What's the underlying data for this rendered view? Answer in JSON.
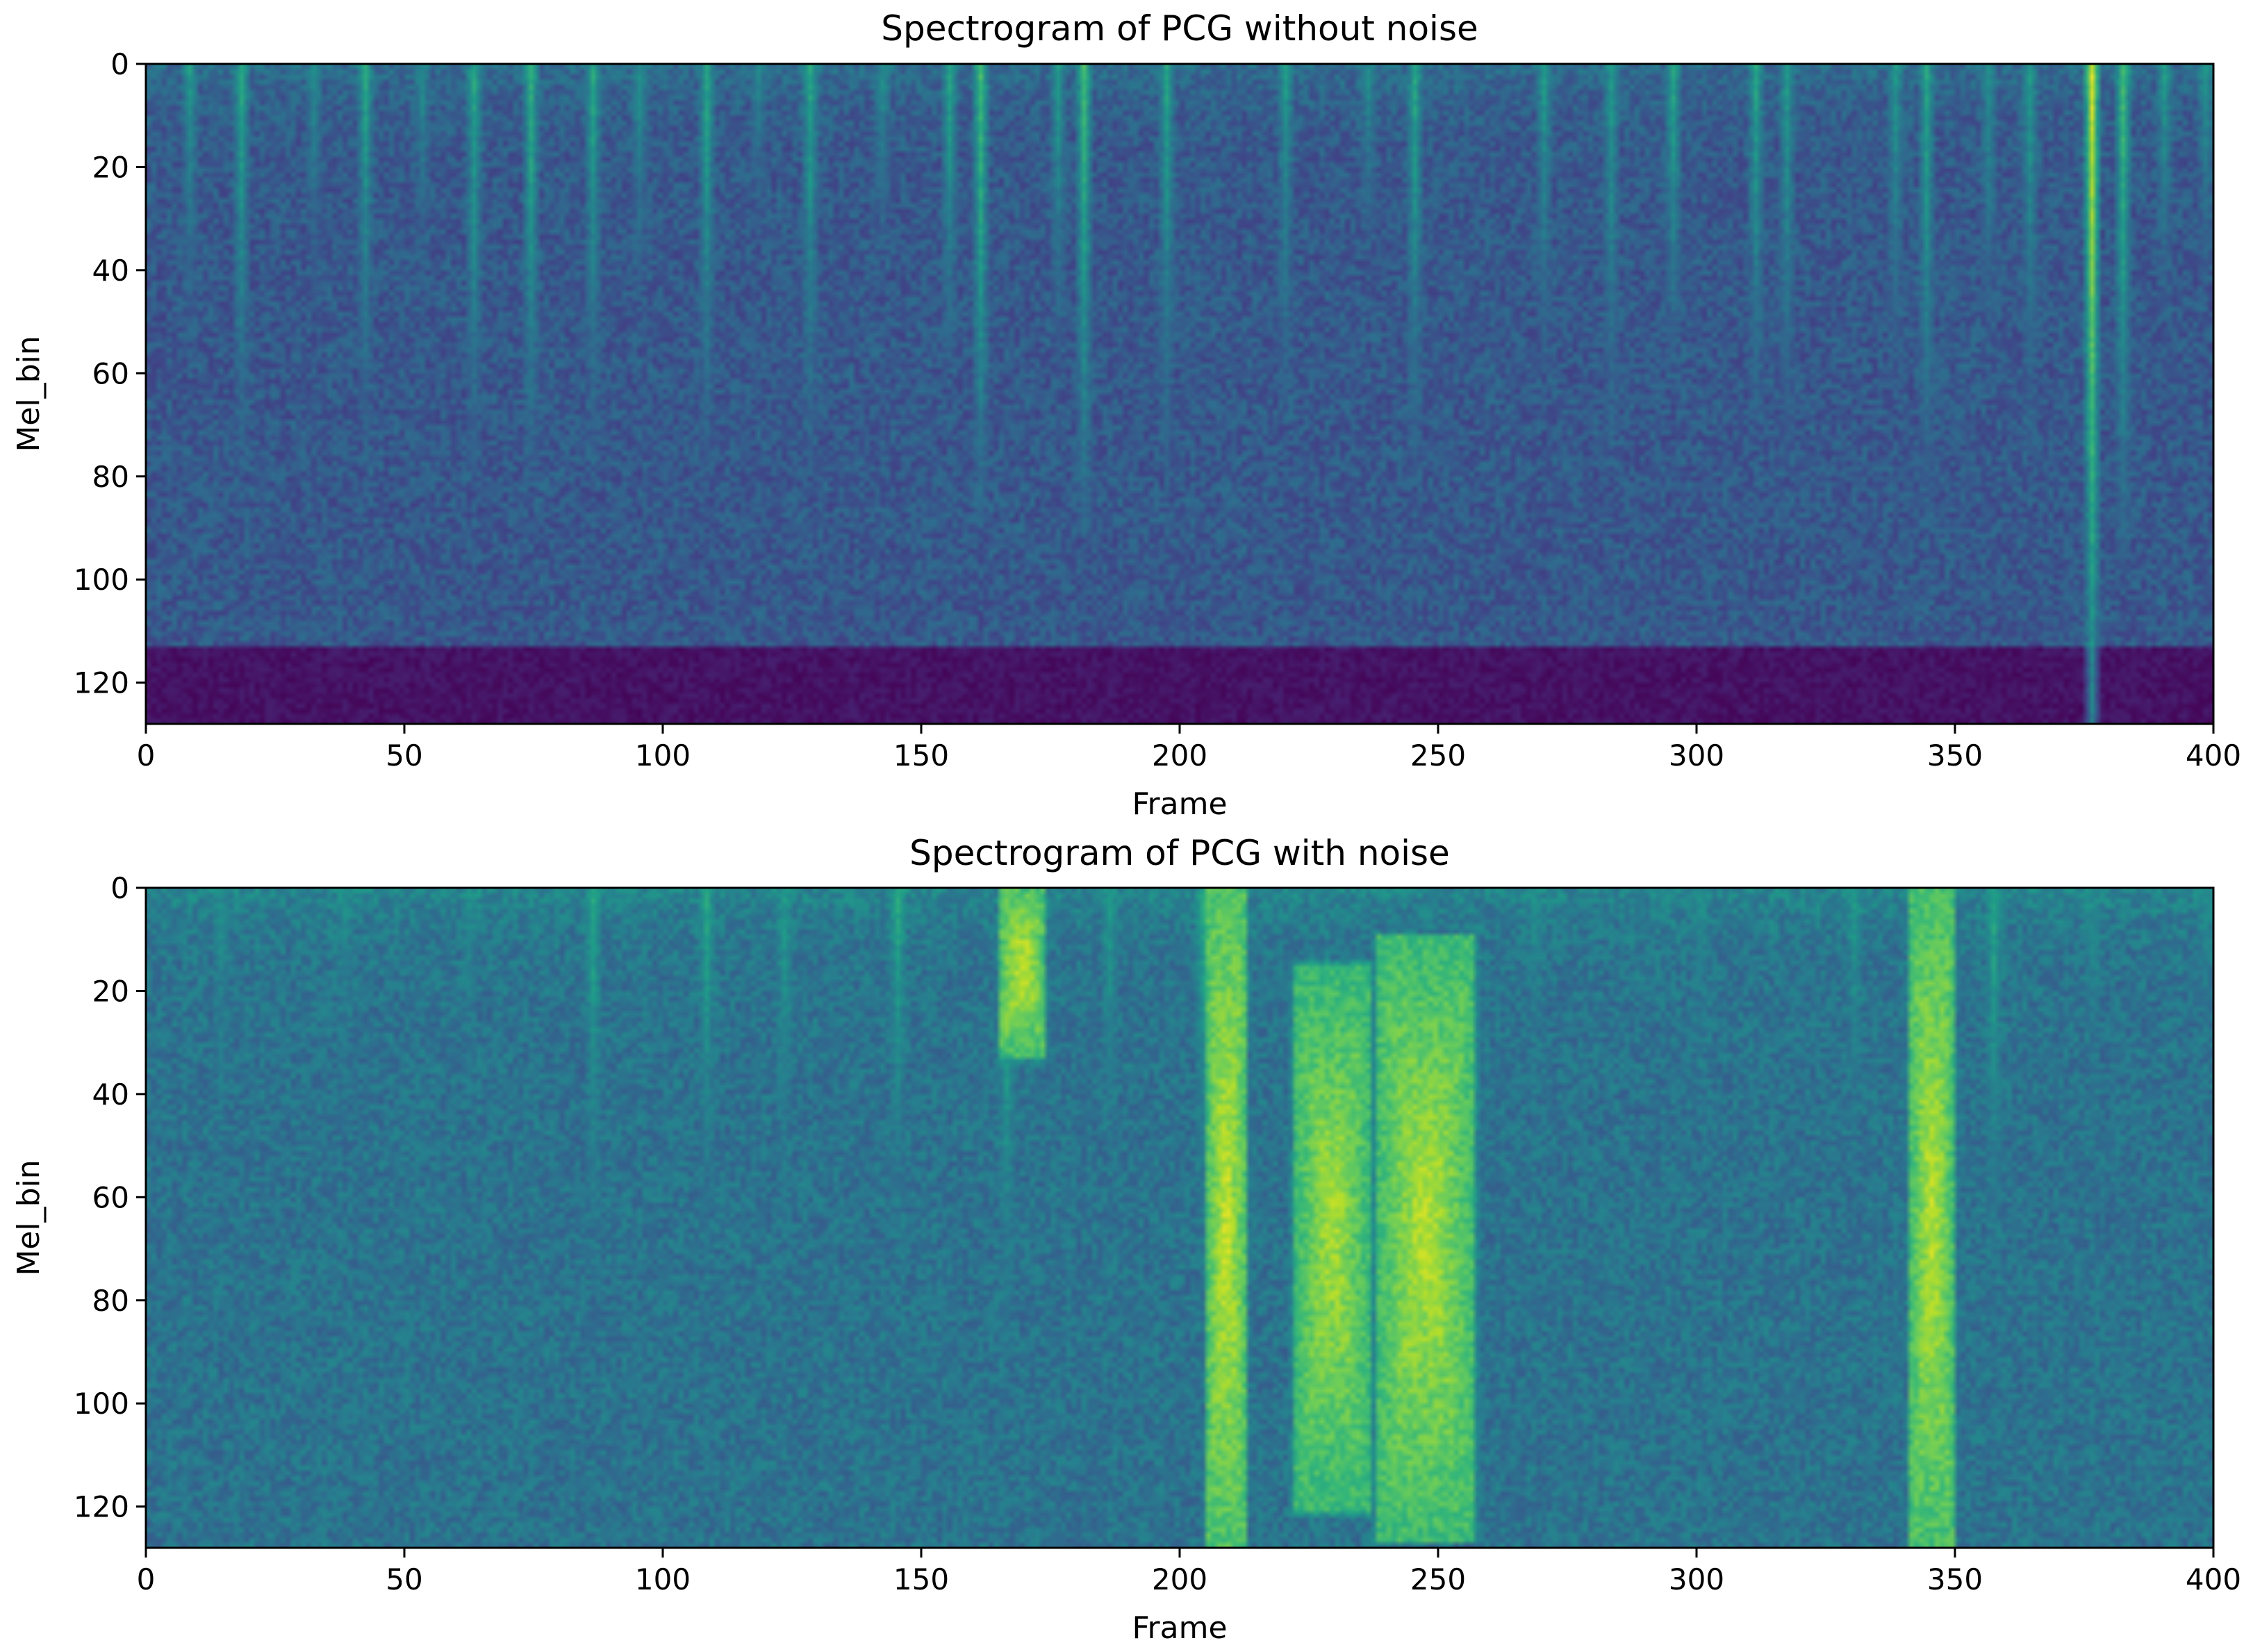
{
  "figure": {
    "colormap": "viridis",
    "colormap_stops": [
      "#440154",
      "#482878",
      "#3e4989",
      "#31688e",
      "#26828e",
      "#1f9e89",
      "#35b779",
      "#6ece58",
      "#b5de2b",
      "#fde725"
    ]
  },
  "chart_data": [
    {
      "type": "heatmap",
      "title": "Spectrogram of PCG without noise",
      "xlabel": "Frame",
      "ylabel": "Mel_bin",
      "xlim": [
        0,
        400
      ],
      "ylim": [
        128,
        0
      ],
      "n_frames": 400,
      "n_mel_bins": 128,
      "x_ticks": [
        "0",
        "50",
        "100",
        "150",
        "200",
        "250",
        "300",
        "350",
        "400"
      ],
      "y_ticks": [
        "0",
        "20",
        "40",
        "60",
        "80",
        "100",
        "120"
      ],
      "grid": false,
      "baseline_level": 0.28,
      "bottom_band": {
        "from_bin": 113,
        "level": 0.05
      },
      "transients": [
        {
          "frame": 8,
          "depth": 50,
          "intensity": 0.55
        },
        {
          "frame": 18,
          "depth": 78,
          "intensity": 0.6
        },
        {
          "frame": 32,
          "depth": 45,
          "intensity": 0.5
        },
        {
          "frame": 42,
          "depth": 72,
          "intensity": 0.6
        },
        {
          "frame": 53,
          "depth": 40,
          "intensity": 0.5
        },
        {
          "frame": 63,
          "depth": 80,
          "intensity": 0.6
        },
        {
          "frame": 74,
          "depth": 80,
          "intensity": 0.65
        },
        {
          "frame": 86,
          "depth": 75,
          "intensity": 0.6
        },
        {
          "frame": 95,
          "depth": 50,
          "intensity": 0.5
        },
        {
          "frame": 108,
          "depth": 80,
          "intensity": 0.6
        },
        {
          "frame": 118,
          "depth": 40,
          "intensity": 0.45
        },
        {
          "frame": 128,
          "depth": 80,
          "intensity": 0.6
        },
        {
          "frame": 142,
          "depth": 40,
          "intensity": 0.5
        },
        {
          "frame": 155,
          "depth": 60,
          "intensity": 0.6
        },
        {
          "frame": 161,
          "depth": 90,
          "intensity": 0.7
        },
        {
          "frame": 176,
          "depth": 60,
          "intensity": 0.55
        },
        {
          "frame": 181,
          "depth": 92,
          "intensity": 0.7
        },
        {
          "frame": 197,
          "depth": 80,
          "intensity": 0.6
        },
        {
          "frame": 220,
          "depth": 70,
          "intensity": 0.55
        },
        {
          "frame": 236,
          "depth": 40,
          "intensity": 0.5
        },
        {
          "frame": 245,
          "depth": 80,
          "intensity": 0.6
        },
        {
          "frame": 270,
          "depth": 60,
          "intensity": 0.55
        },
        {
          "frame": 283,
          "depth": 80,
          "intensity": 0.55
        },
        {
          "frame": 295,
          "depth": 60,
          "intensity": 0.6
        },
        {
          "frame": 311,
          "depth": 70,
          "intensity": 0.6
        },
        {
          "frame": 317,
          "depth": 80,
          "intensity": 0.55
        },
        {
          "frame": 338,
          "depth": 60,
          "intensity": 0.55
        },
        {
          "frame": 344,
          "depth": 90,
          "intensity": 0.6
        },
        {
          "frame": 356,
          "depth": 60,
          "intensity": 0.5
        },
        {
          "frame": 364,
          "depth": 75,
          "intensity": 0.55
        },
        {
          "frame": 376,
          "depth": 128,
          "intensity": 0.95
        },
        {
          "frame": 382,
          "depth": 95,
          "intensity": 0.7
        },
        {
          "frame": 390,
          "depth": 50,
          "intensity": 0.55
        },
        {
          "frame": 398,
          "depth": 40,
          "intensity": 0.55
        }
      ],
      "bursts": []
    },
    {
      "type": "heatmap",
      "title": "Spectrogram of PCG with noise",
      "xlabel": "Frame",
      "ylabel": "Mel_bin",
      "xlim": [
        0,
        400
      ],
      "ylim": [
        128,
        0
      ],
      "n_frames": 400,
      "n_mel_bins": 128,
      "x_ticks": [
        "0",
        "50",
        "100",
        "150",
        "200",
        "250",
        "300",
        "350",
        "400"
      ],
      "y_ticks": [
        "0",
        "20",
        "40",
        "60",
        "80",
        "100",
        "120"
      ],
      "grid": false,
      "baseline_level": 0.38,
      "bottom_band": null,
      "transients": [
        {
          "frame": 14,
          "depth": 70,
          "intensity": 0.5
        },
        {
          "frame": 38,
          "depth": 60,
          "intensity": 0.5
        },
        {
          "frame": 62,
          "depth": 65,
          "intensity": 0.5
        },
        {
          "frame": 86,
          "depth": 90,
          "intensity": 0.6
        },
        {
          "frame": 108,
          "depth": 80,
          "intensity": 0.6
        },
        {
          "frame": 123,
          "depth": 80,
          "intensity": 0.55
        },
        {
          "frame": 145,
          "depth": 85,
          "intensity": 0.6
        },
        {
          "frame": 166,
          "depth": 100,
          "intensity": 0.65
        },
        {
          "frame": 186,
          "depth": 70,
          "intensity": 0.55
        },
        {
          "frame": 204,
          "depth": 80,
          "intensity": 0.6
        },
        {
          "frame": 268,
          "depth": 60,
          "intensity": 0.5
        },
        {
          "frame": 300,
          "depth": 50,
          "intensity": 0.5
        },
        {
          "frame": 330,
          "depth": 70,
          "intensity": 0.55
        },
        {
          "frame": 357,
          "depth": 90,
          "intensity": 0.6
        },
        {
          "frame": 376,
          "depth": 60,
          "intensity": 0.5
        },
        {
          "frame": 398,
          "depth": 50,
          "intensity": 0.5
        }
      ],
      "bursts": [
        {
          "frame_start": 165,
          "frame_end": 173,
          "bin_start": 0,
          "bin_end": 30,
          "intensity": 0.92
        },
        {
          "frame_start": 205,
          "frame_end": 212,
          "bin_start": 0,
          "bin_end": 127,
          "intensity": 0.92
        },
        {
          "frame_start": 222,
          "frame_end": 236,
          "bin_start": 20,
          "bin_end": 115,
          "intensity": 0.88
        },
        {
          "frame_start": 238,
          "frame_end": 256,
          "bin_start": 15,
          "bin_end": 120,
          "intensity": 0.9
        },
        {
          "frame_start": 341,
          "frame_end": 349,
          "bin_start": 0,
          "bin_end": 127,
          "intensity": 0.9
        }
      ]
    }
  ]
}
